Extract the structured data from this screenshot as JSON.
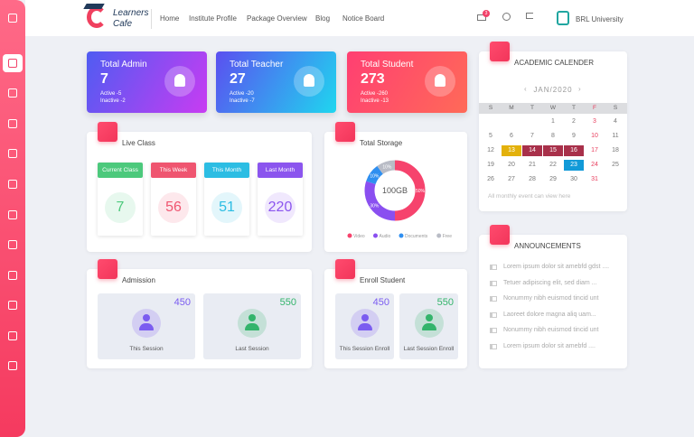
{
  "header": {
    "logo": {
      "line1": "Learners",
      "line2": "Cafe"
    },
    "nav": [
      "Home",
      "Institute Profile",
      "Package Overview",
      "Blog",
      "Notice Board"
    ],
    "notification_count": 3,
    "user": "BRL University"
  },
  "stats": [
    {
      "title": "Total Admin",
      "value": 7,
      "active": "Active -5",
      "inactive": "Inactive -2",
      "colors": [
        "#4f5cf2",
        "#c83cf2"
      ]
    },
    {
      "title": "Total Teacher",
      "value": 27,
      "active": "Active -20",
      "inactive": "Inactive -7",
      "colors": [
        "#5b4ff0",
        "#1fd6ef"
      ]
    },
    {
      "title": "Total Student",
      "value": 273,
      "active": "Active -260",
      "inactive": "Inactive -13",
      "colors": [
        "#ff3f72",
        "#ff6a58"
      ]
    }
  ],
  "live_class": {
    "title": "Live Class",
    "items": [
      {
        "label": "Current Class",
        "value": 7,
        "color": "#4cc97c"
      },
      {
        "label": "This Week",
        "value": 56,
        "color": "#ef5570"
      },
      {
        "label": "This Month",
        "value": 51,
        "color": "#2cbde3"
      },
      {
        "label": "Last Month",
        "value": 220,
        "color": "#8b55ee"
      }
    ]
  },
  "storage": {
    "title": "Total Storage",
    "center": "100GB",
    "names": [
      "Video",
      "Audio",
      "Documents",
      "Free"
    ],
    "values": [
      50,
      30,
      10,
      10
    ],
    "value_labels": [
      "50%",
      "30%",
      "10%",
      "10%"
    ],
    "colors": [
      "#f6436d",
      "#8a4ff0",
      "#2f8ff0",
      "#b9bcc6"
    ]
  },
  "admission": {
    "title": "Admission",
    "items": [
      {
        "label": "This Session",
        "value": 450,
        "color": "#7b5cf0"
      },
      {
        "label": "Last Session",
        "value": 550,
        "color": "#33b46b"
      }
    ]
  },
  "enroll": {
    "title": "Enroll Student",
    "items": [
      {
        "label": "This Session Enroll",
        "value": 450,
        "color": "#7b5cf0"
      },
      {
        "label": "Last Session Enroll",
        "value": 550,
        "color": "#33b46b"
      }
    ]
  },
  "calendar": {
    "title": "ACADEMIC CALENDER",
    "month": "JAN/2020",
    "weekdays": [
      "S",
      "M",
      "T",
      "W",
      "T",
      "F",
      "S"
    ],
    "weeks": [
      [
        null,
        null,
        null,
        1,
        2,
        3,
        4
      ],
      [
        5,
        6,
        7,
        8,
        9,
        10,
        11
      ],
      [
        12,
        13,
        14,
        15,
        16,
        17,
        18
      ],
      [
        19,
        20,
        21,
        22,
        23,
        24,
        25
      ],
      [
        26,
        27,
        28,
        29,
        30,
        31,
        null
      ]
    ],
    "highlights": {
      "13": "#e3b10b",
      "14": "#a8304a",
      "15": "#a8304a",
      "16": "#a8304a",
      "23": "#129ad8"
    },
    "footer": "All monthly event can view here"
  },
  "announcements": {
    "title": "ANNOUNCEMENTS",
    "items": [
      "Lorem ipsum dolor sit amebfd gdst ....",
      "Tetuer adipiscing elit, sed diam ...",
      "Nonummy nibh euismod tincid  unt",
      "Laoreet dolore magna aliq  uam...",
      "Nonummy nibh euismod tincid  unt",
      "Lorem ipsum dolor sit amebfd ...."
    ]
  }
}
